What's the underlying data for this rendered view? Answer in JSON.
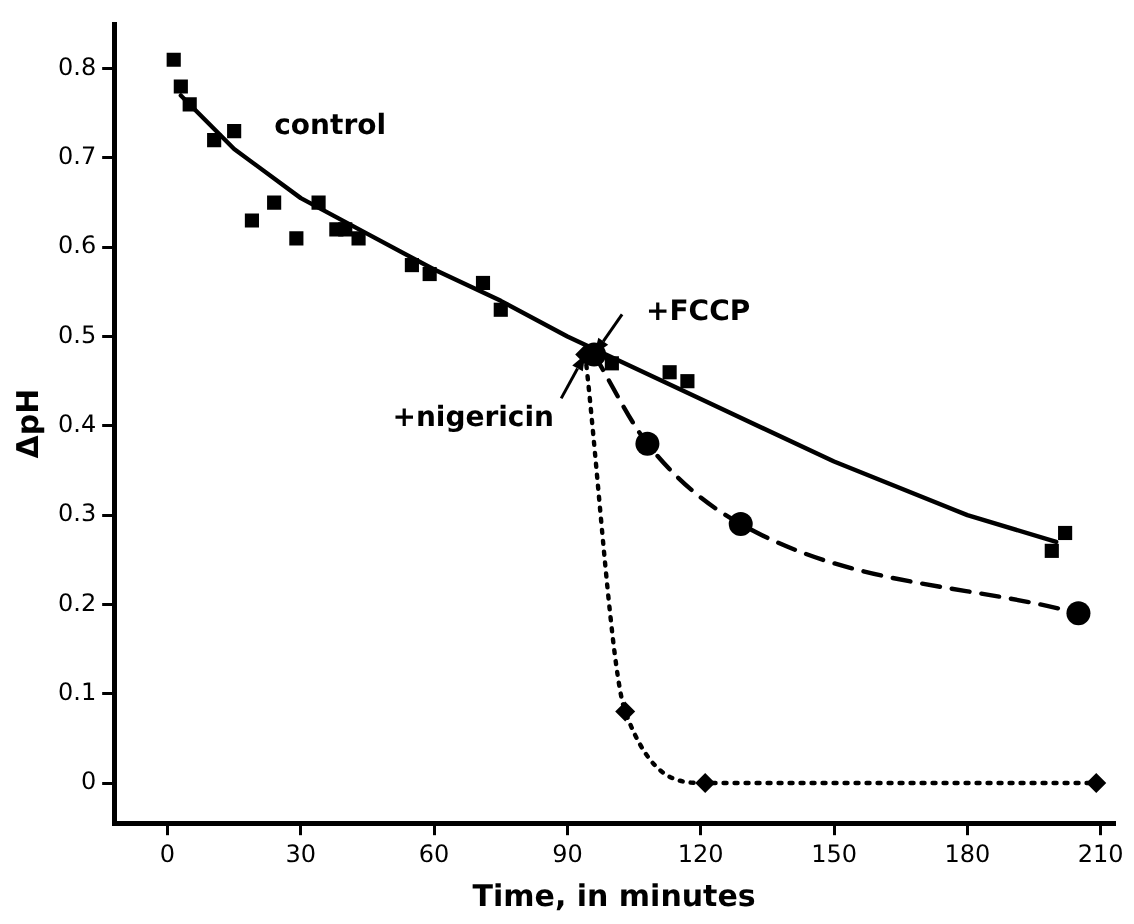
{
  "chart_data": {
    "type": "line",
    "xlabel": "Time, in minutes",
    "ylabel": "ΔpH",
    "xlim": [
      -12,
      213
    ],
    "xticks": [
      0,
      30,
      60,
      90,
      120,
      150,
      180,
      210
    ],
    "ylim": [
      -0.045,
      0.85
    ],
    "yticks": [
      0,
      0.1,
      0.2,
      0.3,
      0.4,
      0.5,
      0.6,
      0.7,
      0.8
    ],
    "grid": false,
    "legend": false,
    "series": [
      {
        "name": "control",
        "type": "scatter",
        "marker": "square",
        "color": "#000000",
        "x": [
          1.4,
          3,
          5,
          10.5,
          15,
          19,
          24,
          29,
          34,
          38,
          40,
          43,
          55,
          59,
          71,
          75,
          100,
          113,
          117,
          199,
          202
        ],
        "values": [
          0.81,
          0.78,
          0.76,
          0.72,
          0.73,
          0.63,
          0.65,
          0.61,
          0.65,
          0.62,
          0.62,
          0.61,
          0.58,
          0.57,
          0.56,
          0.53,
          0.47,
          0.46,
          0.45,
          0.26,
          0.28
        ]
      },
      {
        "type": "line",
        "marker": "none",
        "line_style": "solid",
        "color": "#000000",
        "x": [
          3,
          15,
          30,
          45,
          60,
          75,
          90,
          105,
          120,
          150,
          180,
          200
        ],
        "values": [
          0.77,
          0.71,
          0.655,
          0.615,
          0.575,
          0.54,
          0.5,
          0.465,
          0.43,
          0.36,
          0.3,
          0.27
        ]
      },
      {
        "type": "line",
        "marker": "circle",
        "line_style": "dashed",
        "color": "#000000",
        "x": [
          96,
          108,
          129,
          205
        ],
        "values": [
          0.48,
          0.38,
          0.29,
          0.19
        ]
      },
      {
        "type": "line",
        "marker": "diamond",
        "line_style": "dotted",
        "color": "#000000",
        "x": [
          94,
          103,
          121,
          209
        ],
        "values": [
          0.48,
          0.08,
          0,
          0
        ]
      }
    ],
    "annotations": [
      {
        "text": "+FCCP",
        "x": 96,
        "y": 0.48
      },
      {
        "text": "+nigericin",
        "x": 94,
        "y": 0.48
      }
    ]
  }
}
